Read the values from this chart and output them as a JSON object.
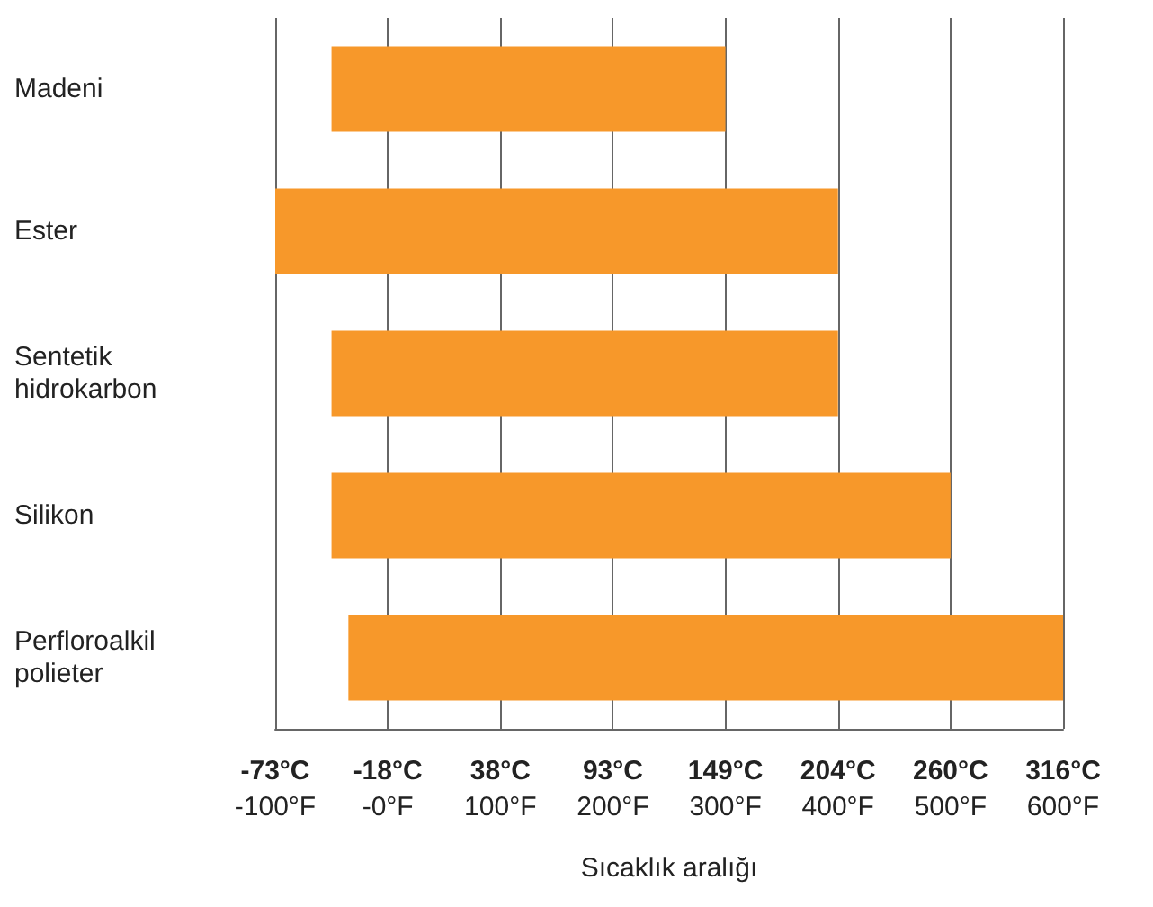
{
  "chart_data": {
    "type": "bar",
    "orientation": "horizontal",
    "xlabel": "Sıcaklık aralığı",
    "categories": [
      "Madeni",
      "Ester",
      "Sentetik\nhidrokarbon",
      "Silikon",
      "Perfloroalkil\npolieter"
    ],
    "base": [
      -50,
      -100,
      -50,
      -50,
      -35
    ],
    "values": [
      350,
      500,
      450,
      550,
      635
    ],
    "color": "#f7982a",
    "xlim": [
      -100,
      600
    ],
    "xticks": [
      {
        "value": -100,
        "label": "-100°F"
      },
      {
        "value": 0,
        "label": "-0°F"
      },
      {
        "value": 100,
        "label": "100°F"
      },
      {
        "value": 200,
        "label": "200°F"
      },
      {
        "value": 300,
        "label": "300°F"
      },
      {
        "value": 400,
        "label": "400°F"
      },
      {
        "value": 500,
        "label": "500°F"
      },
      {
        "value": 600,
        "label": "600°F"
      }
    ],
    "x2lim": [
      -73.33,
      315.56
    ],
    "x2ticks": [
      {
        "value": -73.33,
        "label": "-73°C"
      },
      {
        "value": -17.78,
        "label": "-18°C"
      },
      {
        "value": 37.78,
        "label": "38°C"
      },
      {
        "value": 93.33,
        "label": "93°C"
      },
      {
        "value": 148.89,
        "label": "149°C"
      },
      {
        "value": 204.44,
        "label": "204°C"
      },
      {
        "value": 260,
        "label": "260°C"
      },
      {
        "value": 315.56,
        "label": "316°C"
      }
    ],
    "grid": "x"
  }
}
